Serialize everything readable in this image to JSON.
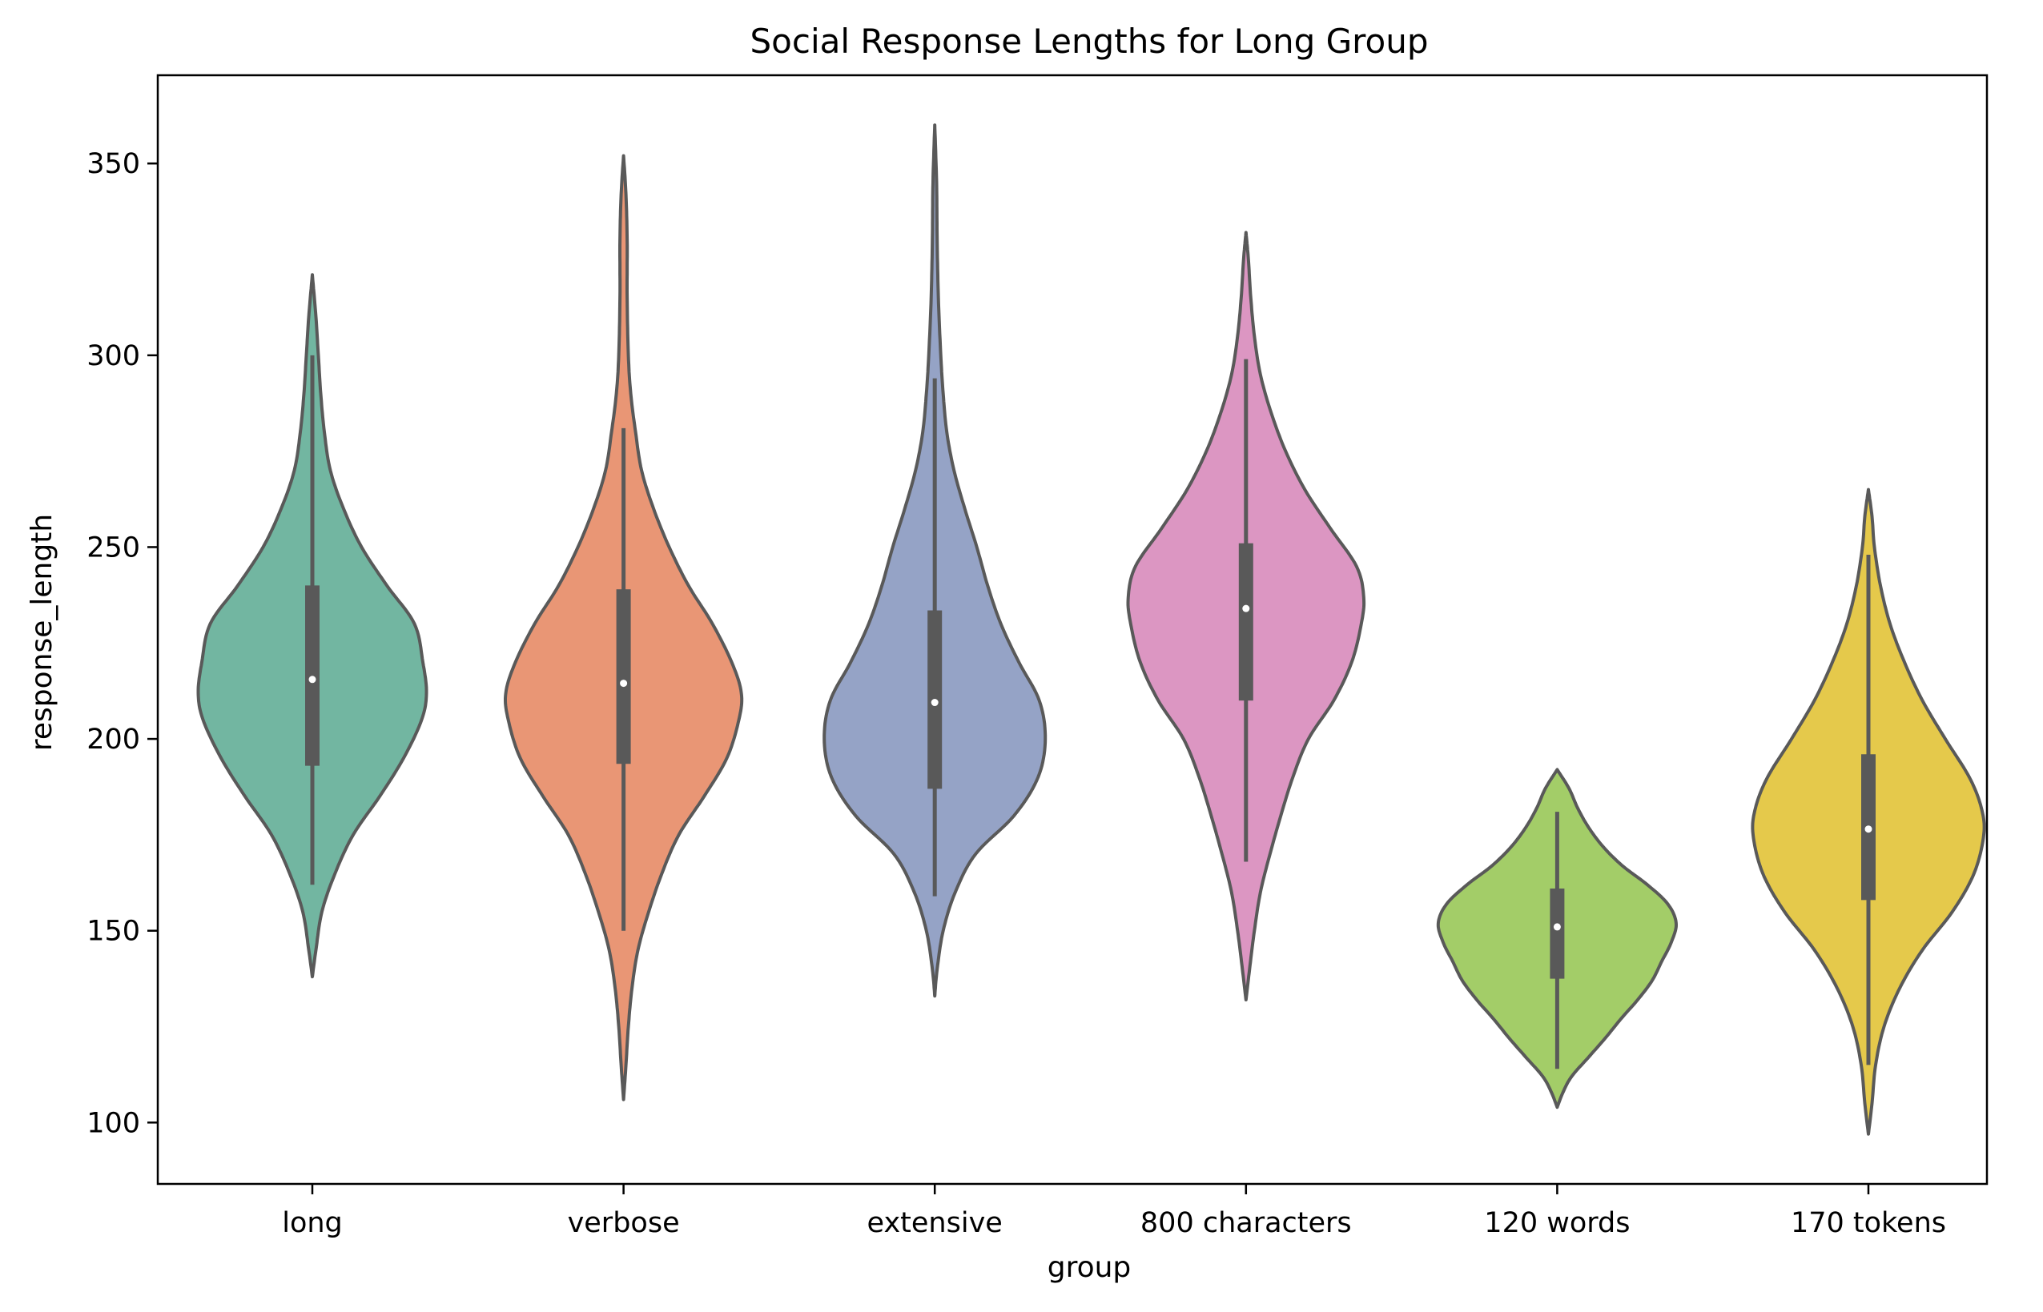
{
  "chart_data": {
    "type": "violin",
    "title": "Social Response Lengths for Long Group",
    "xlabel": "group",
    "ylabel": "response_length",
    "ylim": [
      84,
      373
    ],
    "yticks": [
      100,
      150,
      200,
      250,
      300,
      350
    ],
    "grid": false,
    "legend": "none",
    "categories": [
      "long",
      "verbose",
      "extensive",
      "800 characters",
      "120 words",
      "170 tokens"
    ],
    "colors": [
      "#72b6a1",
      "#e99675",
      "#95a3c6",
      "#dc96c2",
      "#a3cd68",
      "#e5c94b"
    ],
    "outline_color": "#595959",
    "violins": [
      {
        "category": "long",
        "min": 138,
        "max": 321,
        "q1": 193,
        "median": 215.5,
        "q3": 240,
        "whisker_low": 162,
        "whisker_high": 300,
        "profile": [
          [
            138,
            0
          ],
          [
            145,
            0.03
          ],
          [
            155,
            0.08
          ],
          [
            165,
            0.19
          ],
          [
            175,
            0.34
          ],
          [
            185,
            0.56
          ],
          [
            195,
            0.76
          ],
          [
            205,
            0.91
          ],
          [
            212,
            0.95
          ],
          [
            220,
            0.92
          ],
          [
            230,
            0.85
          ],
          [
            240,
            0.62
          ],
          [
            250,
            0.41
          ],
          [
            260,
            0.26
          ],
          [
            270,
            0.15
          ],
          [
            280,
            0.1
          ],
          [
            290,
            0.07
          ],
          [
            300,
            0.05
          ],
          [
            310,
            0.03
          ],
          [
            321,
            0
          ]
        ]
      },
      {
        "category": "verbose",
        "min": 106,
        "max": 352,
        "q1": 193.5,
        "median": 214.5,
        "q3": 239,
        "whisker_low": 150,
        "whisker_high": 281,
        "profile": [
          [
            106,
            0
          ],
          [
            115,
            0.02
          ],
          [
            125,
            0.04
          ],
          [
            135,
            0.07
          ],
          [
            145,
            0.12
          ],
          [
            155,
            0.21
          ],
          [
            165,
            0.32
          ],
          [
            175,
            0.46
          ],
          [
            185,
            0.67
          ],
          [
            195,
            0.86
          ],
          [
            205,
            0.96
          ],
          [
            212,
            0.98
          ],
          [
            220,
            0.9
          ],
          [
            230,
            0.74
          ],
          [
            240,
            0.54
          ],
          [
            250,
            0.38
          ],
          [
            260,
            0.25
          ],
          [
            270,
            0.15
          ],
          [
            280,
            0.1
          ],
          [
            290,
            0.06
          ],
          [
            300,
            0.04
          ],
          [
            315,
            0.03
          ],
          [
            330,
            0.03
          ],
          [
            342,
            0.02
          ],
          [
            352,
            0
          ]
        ]
      },
      {
        "category": "extensive",
        "min": 133,
        "max": 360,
        "q1": 187,
        "median": 209.5,
        "q3": 233.5,
        "whisker_low": 159,
        "whisker_high": 294,
        "profile": [
          [
            133,
            0
          ],
          [
            140,
            0.02
          ],
          [
            150,
            0.07
          ],
          [
            160,
            0.17
          ],
          [
            170,
            0.34
          ],
          [
            180,
            0.66
          ],
          [
            190,
            0.86
          ],
          [
            200,
            0.92
          ],
          [
            210,
            0.87
          ],
          [
            220,
            0.7
          ],
          [
            230,
            0.55
          ],
          [
            240,
            0.44
          ],
          [
            250,
            0.35
          ],
          [
            260,
            0.25
          ],
          [
            270,
            0.16
          ],
          [
            280,
            0.1
          ],
          [
            290,
            0.07
          ],
          [
            300,
            0.05
          ],
          [
            315,
            0.03
          ],
          [
            330,
            0.02
          ],
          [
            345,
            0.015
          ],
          [
            360,
            0
          ]
        ]
      },
      {
        "category": "800 characters",
        "min": 132,
        "max": 332,
        "q1": 210,
        "median": 234,
        "q3": 251,
        "whisker_low": 168,
        "whisker_high": 299,
        "profile": [
          [
            132,
            0
          ],
          [
            140,
            0.03
          ],
          [
            150,
            0.07
          ],
          [
            160,
            0.12
          ],
          [
            170,
            0.2
          ],
          [
            180,
            0.29
          ],
          [
            190,
            0.39
          ],
          [
            200,
            0.52
          ],
          [
            210,
            0.73
          ],
          [
            220,
            0.88
          ],
          [
            230,
            0.96
          ],
          [
            237,
            0.98
          ],
          [
            245,
            0.92
          ],
          [
            255,
            0.7
          ],
          [
            265,
            0.49
          ],
          [
            275,
            0.33
          ],
          [
            285,
            0.21
          ],
          [
            295,
            0.12
          ],
          [
            305,
            0.07
          ],
          [
            315,
            0.04
          ],
          [
            325,
            0.02
          ],
          [
            332,
            0
          ]
        ]
      },
      {
        "category": "120 words",
        "min": 104,
        "max": 192,
        "q1": 137.5,
        "median": 151,
        "q3": 161,
        "whisker_low": 114,
        "whisker_high": 181,
        "profile": [
          [
            104,
            0
          ],
          [
            108,
            0.05
          ],
          [
            112,
            0.12
          ],
          [
            117,
            0.26
          ],
          [
            122,
            0.4
          ],
          [
            127,
            0.53
          ],
          [
            132,
            0.67
          ],
          [
            137,
            0.79
          ],
          [
            142,
            0.87
          ],
          [
            147,
            0.95
          ],
          [
            152,
            0.99
          ],
          [
            157,
            0.92
          ],
          [
            162,
            0.75
          ],
          [
            167,
            0.54
          ],
          [
            172,
            0.38
          ],
          [
            177,
            0.26
          ],
          [
            182,
            0.17
          ],
          [
            187,
            0.1
          ],
          [
            192,
            0
          ]
        ]
      },
      {
        "category": "170 tokens",
        "min": 97,
        "max": 265,
        "q1": 158,
        "median": 176.5,
        "q3": 196,
        "whisker_low": 115,
        "whisker_high": 248,
        "profile": [
          [
            97,
            0
          ],
          [
            105,
            0.03
          ],
          [
            115,
            0.06
          ],
          [
            125,
            0.13
          ],
          [
            135,
            0.26
          ],
          [
            145,
            0.45
          ],
          [
            155,
            0.7
          ],
          [
            165,
            0.88
          ],
          [
            175,
            0.96
          ],
          [
            182,
            0.94
          ],
          [
            190,
            0.84
          ],
          [
            200,
            0.64
          ],
          [
            210,
            0.45
          ],
          [
            220,
            0.3
          ],
          [
            230,
            0.18
          ],
          [
            240,
            0.1
          ],
          [
            250,
            0.05
          ],
          [
            258,
            0.03
          ],
          [
            265,
            0
          ]
        ]
      }
    ]
  }
}
